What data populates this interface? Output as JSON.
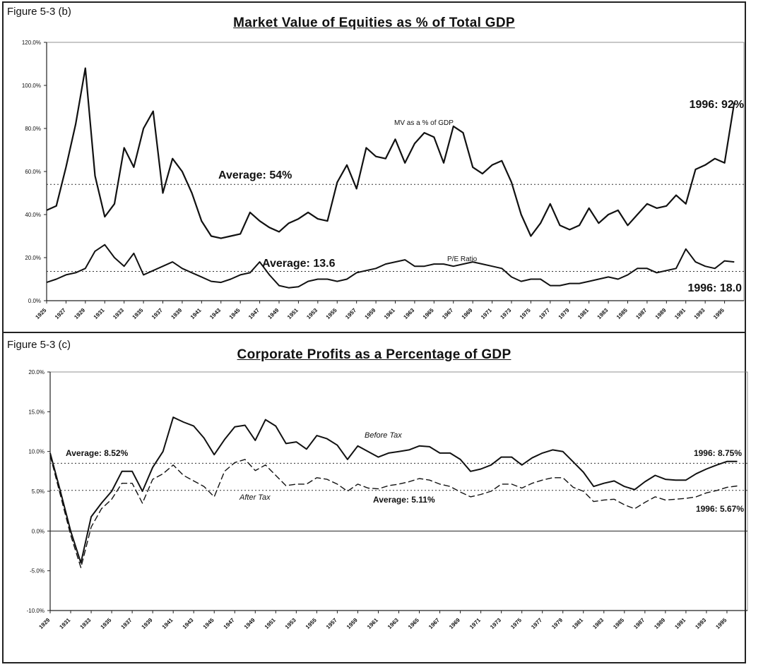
{
  "chart_data": [
    {
      "id": "5-3 (b)",
      "figure_label": "Figure 5-3 (b)",
      "type": "line",
      "title": "Market Value of Equities as % of Total GDP",
      "ylim": [
        0,
        120
      ],
      "xlim": [
        1925,
        1997
      ],
      "grid": false,
      "y_ticks": [
        "0.0%",
        "20.0%",
        "40.0%",
        "60.0%",
        "80.0%",
        "100.0%",
        "120.0%"
      ],
      "x_ticks": [
        "1925",
        "1927",
        "1929",
        "1931",
        "1933",
        "1935",
        "1937",
        "1939",
        "1941",
        "1943",
        "1945",
        "1947",
        "1949",
        "1951",
        "1953",
        "1955",
        "1957",
        "1959",
        "1961",
        "1963",
        "1965",
        "1967",
        "1969",
        "1971",
        "1973",
        "1975",
        "1977",
        "1979",
        "1981",
        "1983",
        "1985",
        "1987",
        "1989",
        "1991",
        "1993",
        "1995"
      ],
      "series": [
        {
          "name": "MV as a % of GDP",
          "x": [
            1925,
            1926,
            1927,
            1928,
            1929,
            1930,
            1931,
            1932,
            1933,
            1934,
            1935,
            1936,
            1937,
            1938,
            1939,
            1940,
            1941,
            1942,
            1943,
            1944,
            1945,
            1946,
            1947,
            1948,
            1949,
            1950,
            1951,
            1952,
            1953,
            1954,
            1955,
            1956,
            1957,
            1958,
            1959,
            1960,
            1961,
            1962,
            1963,
            1964,
            1965,
            1966,
            1967,
            1968,
            1969,
            1970,
            1971,
            1972,
            1973,
            1974,
            1975,
            1976,
            1977,
            1978,
            1979,
            1980,
            1981,
            1982,
            1983,
            1984,
            1985,
            1986,
            1987,
            1988,
            1989,
            1990,
            1991,
            1992,
            1993,
            1994,
            1995,
            1996
          ],
          "values": [
            42,
            44,
            62,
            82,
            108,
            58,
            39,
            45,
            71,
            62,
            80,
            88,
            50,
            66,
            60,
            50,
            37,
            30,
            29,
            30,
            31,
            41,
            37,
            34,
            32,
            36,
            38,
            41,
            38,
            37,
            55,
            63,
            52,
            71,
            67,
            66,
            75,
            64,
            73,
            78,
            76,
            64,
            81,
            78,
            62,
            59,
            63,
            65,
            55,
            40,
            30,
            36,
            45,
            35,
            33,
            35,
            43,
            36,
            40,
            42,
            35,
            40,
            45,
            43,
            44,
            49,
            45,
            61,
            63,
            66,
            64,
            92
          ]
        },
        {
          "name": "P/E Ratio",
          "x": [
            1925,
            1926,
            1927,
            1928,
            1929,
            1930,
            1931,
            1932,
            1933,
            1934,
            1935,
            1936,
            1937,
            1938,
            1939,
            1940,
            1941,
            1942,
            1943,
            1944,
            1945,
            1946,
            1947,
            1948,
            1949,
            1950,
            1951,
            1952,
            1953,
            1954,
            1955,
            1956,
            1957,
            1958,
            1959,
            1960,
            1961,
            1962,
            1963,
            1964,
            1965,
            1966,
            1967,
            1968,
            1969,
            1970,
            1971,
            1972,
            1973,
            1974,
            1975,
            1976,
            1977,
            1978,
            1979,
            1980,
            1981,
            1982,
            1983,
            1984,
            1985,
            1986,
            1987,
            1988,
            1989,
            1990,
            1991,
            1992,
            1993,
            1994,
            1995,
            1996
          ],
          "values": [
            8.5,
            10,
            12,
            13,
            15,
            23,
            26,
            20,
            16,
            22,
            12,
            14,
            16,
            18,
            15,
            13,
            11,
            9,
            8.5,
            10,
            12,
            13,
            18,
            12,
            7,
            6,
            6.5,
            9,
            10,
            10,
            9,
            10,
            13,
            14,
            15,
            17,
            18,
            19,
            16,
            16,
            17,
            17,
            16,
            17,
            18,
            17,
            16,
            15,
            11,
            9,
            10,
            10,
            7,
            7,
            8,
            8,
            9,
            10,
            11,
            10,
            12,
            15,
            15,
            13,
            14,
            15,
            24,
            18,
            16,
            15,
            18.5,
            18
          ]
        }
      ],
      "reference_lines": [
        {
          "label": "Average: 54%",
          "value": 54
        },
        {
          "label": "Average: 13.6",
          "value": 13.6
        }
      ],
      "annotations": [
        "1996: 92%",
        "1996: 18.0"
      ]
    },
    {
      "id": "5-3 (c)",
      "figure_label": "Figure 5-3 (c)",
      "type": "line",
      "title": "Corporate Profits as a Percentage of GDP",
      "ylim": [
        -10,
        20
      ],
      "xlim": [
        1929,
        1997
      ],
      "grid": false,
      "y_ticks": [
        "-10.0%",
        "-5.0%",
        "0.0%",
        "5.0%",
        "10.0%",
        "15.0%",
        "20.0%"
      ],
      "x_ticks": [
        "1929",
        "1931",
        "1933",
        "1935",
        "1937",
        "1939",
        "1941",
        "1943",
        "1945",
        "1947",
        "1949",
        "1951",
        "1953",
        "1955",
        "1957",
        "1959",
        "1961",
        "1963",
        "1965",
        "1967",
        "1969",
        "1971",
        "1973",
        "1975",
        "1977",
        "1979",
        "1981",
        "1983",
        "1985",
        "1987",
        "1989",
        "1991",
        "1993",
        "1995"
      ],
      "series": [
        {
          "name": "Before Tax",
          "x": [
            1929,
            1930,
            1931,
            1932,
            1933,
            1934,
            1935,
            1936,
            1937,
            1938,
            1939,
            1940,
            1941,
            1942,
            1943,
            1944,
            1945,
            1946,
            1947,
            1948,
            1949,
            1950,
            1951,
            1952,
            1953,
            1954,
            1955,
            1956,
            1957,
            1958,
            1959,
            1960,
            1961,
            1962,
            1963,
            1964,
            1965,
            1966,
            1967,
            1968,
            1969,
            1970,
            1971,
            1972,
            1973,
            1974,
            1975,
            1976,
            1977,
            1978,
            1979,
            1980,
            1981,
            1982,
            1983,
            1984,
            1985,
            1986,
            1987,
            1988,
            1989,
            1990,
            1991,
            1992,
            1993,
            1994,
            1995,
            1996
          ],
          "values": [
            9.8,
            5,
            0,
            -4,
            1.8,
            3.5,
            5,
            7.5,
            7.5,
            5,
            8,
            10,
            14.3,
            13.7,
            13.2,
            11.7,
            9.6,
            11.5,
            13.1,
            13.3,
            11.4,
            14,
            13.2,
            11,
            11.2,
            10.3,
            12,
            11.6,
            10.8,
            9,
            10.7,
            10,
            9.3,
            9.8,
            10,
            10.2,
            10.7,
            10.6,
            9.8,
            9.8,
            9,
            7.5,
            7.8,
            8.3,
            9.3,
            9.3,
            8.3,
            9.2,
            9.8,
            10.2,
            10,
            8.7,
            7.4,
            5.6,
            6,
            6.3,
            5.6,
            5.2,
            6.2,
            7,
            6.5,
            6.4,
            6.4,
            7.2,
            7.8,
            8.3,
            8.75,
            8.75
          ]
        },
        {
          "name": "After Tax",
          "x": [
            1929,
            1930,
            1931,
            1932,
            1933,
            1934,
            1935,
            1936,
            1937,
            1938,
            1939,
            1940,
            1941,
            1942,
            1943,
            1944,
            1945,
            1946,
            1947,
            1948,
            1949,
            1950,
            1951,
            1952,
            1953,
            1954,
            1955,
            1956,
            1957,
            1958,
            1959,
            1960,
            1961,
            1962,
            1963,
            1964,
            1965,
            1966,
            1967,
            1968,
            1969,
            1970,
            1971,
            1972,
            1973,
            1974,
            1975,
            1976,
            1977,
            1978,
            1979,
            1980,
            1981,
            1982,
            1983,
            1984,
            1985,
            1986,
            1987,
            1988,
            1989,
            1990,
            1991,
            1992,
            1993,
            1994,
            1995,
            1996
          ],
          "values": [
            9.5,
            4.5,
            -0.5,
            -4.6,
            0.5,
            2.8,
            4,
            6,
            6,
            3.5,
            6.5,
            7.2,
            8.3,
            7,
            6.3,
            5.6,
            4.3,
            7.5,
            8.6,
            9,
            7.6,
            8.3,
            7,
            5.7,
            5.9,
            5.9,
            6.7,
            6.5,
            5.9,
            5,
            5.9,
            5.4,
            5.3,
            5.7,
            5.9,
            6.2,
            6.6,
            6.4,
            5.9,
            5.6,
            4.9,
            4.3,
            4.6,
            5,
            5.9,
            5.9,
            5.4,
            6,
            6.4,
            6.7,
            6.7,
            5.5,
            5,
            3.7,
            3.9,
            4,
            3.3,
            2.8,
            3.6,
            4.3,
            3.9,
            4,
            4.1,
            4.3,
            4.8,
            5.1,
            5.5,
            5.67
          ]
        }
      ],
      "reference_lines": [
        {
          "label": "Average: 8.52%",
          "value": 8.52
        },
        {
          "label": "Average: 5.11%",
          "value": 5.11
        }
      ],
      "annotations": [
        "1996: 8.75%",
        "1996: 5.67%"
      ]
    }
  ]
}
